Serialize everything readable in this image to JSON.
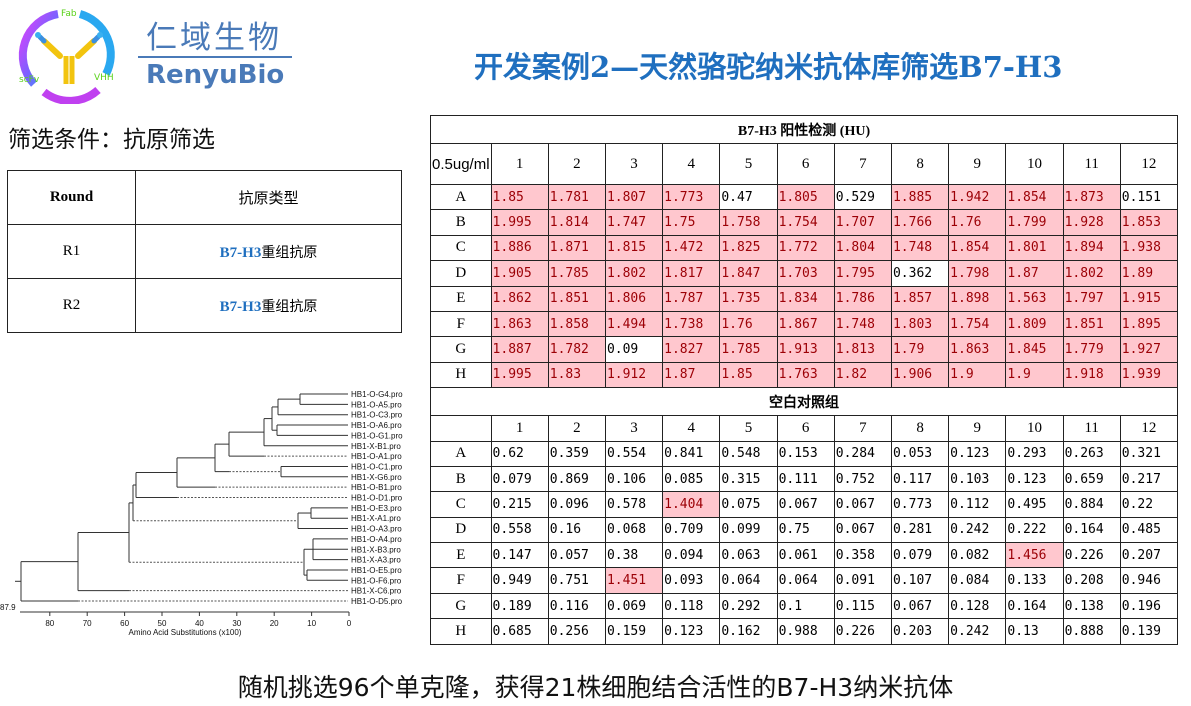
{
  "logo": {
    "cn": "仁域生物",
    "en": "RenyuBio",
    "labels": [
      "Fab",
      "scFv",
      "VHH"
    ]
  },
  "title": "开发案例2—天然骆驼纳米抗体库筛选B7-H3",
  "criteria": "筛选条件：抗原筛选",
  "round_table": {
    "headers": [
      "Round",
      "抗原类型"
    ],
    "rows": [
      {
        "round": "R1",
        "antigen_accent": "B7-H3",
        "antigen_rest": "重组抗原"
      },
      {
        "round": "R2",
        "antigen_accent": "B7-H3",
        "antigen_rest": "重组抗原"
      }
    ]
  },
  "colors": {
    "accent": "#1f6fbf",
    "highlight_bg": "#ffc7ce",
    "highlight_text": "#9c0006"
  },
  "plate": {
    "positive_title": "B7-H3 阳性检测 (HU)",
    "corner": "0.5ug/ml",
    "columns": [
      "1",
      "2",
      "3",
      "4",
      "5",
      "6",
      "7",
      "8",
      "9",
      "10",
      "11",
      "12"
    ],
    "rows": [
      "A",
      "B",
      "C",
      "D",
      "E",
      "F",
      "G",
      "H"
    ],
    "positive": [
      [
        "1.85",
        "1.781",
        "1.807",
        "1.773",
        "0.47",
        "1.805",
        "0.529",
        "1.885",
        "1.942",
        "1.854",
        "1.873",
        "0.151"
      ],
      [
        "1.995",
        "1.814",
        "1.747",
        "1.75",
        "1.758",
        "1.754",
        "1.707",
        "1.766",
        "1.76",
        "1.799",
        "1.928",
        "1.853"
      ],
      [
        "1.886",
        "1.871",
        "1.815",
        "1.472",
        "1.825",
        "1.772",
        "1.804",
        "1.748",
        "1.854",
        "1.801",
        "1.894",
        "1.938"
      ],
      [
        "1.905",
        "1.785",
        "1.802",
        "1.817",
        "1.847",
        "1.703",
        "1.795",
        "0.362",
        "1.798",
        "1.87",
        "1.802",
        "1.89"
      ],
      [
        "1.862",
        "1.851",
        "1.806",
        "1.787",
        "1.735",
        "1.834",
        "1.786",
        "1.857",
        "1.898",
        "1.563",
        "1.797",
        "1.915"
      ],
      [
        "1.863",
        "1.858",
        "1.494",
        "1.738",
        "1.76",
        "1.867",
        "1.748",
        "1.803",
        "1.754",
        "1.809",
        "1.851",
        "1.895"
      ],
      [
        "1.887",
        "1.782",
        "0.09",
        "1.827",
        "1.785",
        "1.913",
        "1.813",
        "1.79",
        "1.863",
        "1.845",
        "1.779",
        "1.927"
      ],
      [
        "1.995",
        "1.83",
        "1.912",
        "1.87",
        "1.85",
        "1.763",
        "1.82",
        "1.906",
        "1.9",
        "1.9",
        "1.918",
        "1.939"
      ]
    ],
    "blank_title": "空白对照组",
    "blank": [
      [
        "0.62",
        "0.359",
        "0.554",
        "0.841",
        "0.548",
        "0.153",
        "0.284",
        "0.053",
        "0.123",
        "0.293",
        "0.263",
        "0.321"
      ],
      [
        "0.079",
        "0.869",
        "0.106",
        "0.085",
        "0.315",
        "0.111",
        "0.752",
        "0.117",
        "0.103",
        "0.123",
        "0.659",
        "0.217"
      ],
      [
        "0.215",
        "0.096",
        "0.578",
        "1.404",
        "0.075",
        "0.067",
        "0.067",
        "0.773",
        "0.112",
        "0.495",
        "0.884",
        "0.22"
      ],
      [
        "0.558",
        "0.16",
        "0.068",
        "0.709",
        "0.099",
        "0.75",
        "0.067",
        "0.281",
        "0.242",
        "0.222",
        "0.164",
        "0.485"
      ],
      [
        "0.147",
        "0.057",
        "0.38",
        "0.094",
        "0.063",
        "0.061",
        "0.358",
        "0.079",
        "0.082",
        "1.456",
        "0.226",
        "0.207"
      ],
      [
        "0.949",
        "0.751",
        "1.451",
        "0.093",
        "0.064",
        "0.064",
        "0.091",
        "0.107",
        "0.084",
        "0.133",
        "0.208",
        "0.946"
      ],
      [
        "0.189",
        "0.116",
        "0.069",
        "0.118",
        "0.292",
        "0.1",
        "0.115",
        "0.067",
        "0.128",
        "0.164",
        "0.138",
        "0.196"
      ],
      [
        "0.685",
        "0.256",
        "0.159",
        "0.123",
        "0.162",
        "0.988",
        "0.226",
        "0.203",
        "0.242",
        "0.13",
        "0.888",
        "0.139"
      ]
    ]
  },
  "tree": {
    "leaves": [
      "HB1-O-G4.pro",
      "HB1-O-A5.pro",
      "HB1-O-C3.pro",
      "HB1-O-A6.pro",
      "HB1-O-G1.pro",
      "HB1-X-B1.pro",
      "HB1-O-A1.pro",
      "HB1-O-C1.pro",
      "HB1-X-G6.pro",
      "HB1-O-B1.pro",
      "HB1-O-D1.pro",
      "HB1-O-E3.pro",
      "HB1-X-A1.pro",
      "HB1-O-A3.pro",
      "HB1-O-A4.pro",
      "HB1-X-B3.pro",
      "HB1-X-A3.pro",
      "HB1-O-E5.pro",
      "HB1-O-F6.pro",
      "HB1-X-C6.pro",
      "HB1-O-D5.pro"
    ],
    "axis_ticks": [
      "80",
      "70",
      "60",
      "50",
      "40",
      "30",
      "20",
      "10",
      "0"
    ],
    "axis_label": "Amino Acid Substitutions (x100)",
    "max_label": "87.9"
  },
  "caption": "随机挑选96个单克隆，获得21株细胞结合活性的B7-H3纳米抗体"
}
